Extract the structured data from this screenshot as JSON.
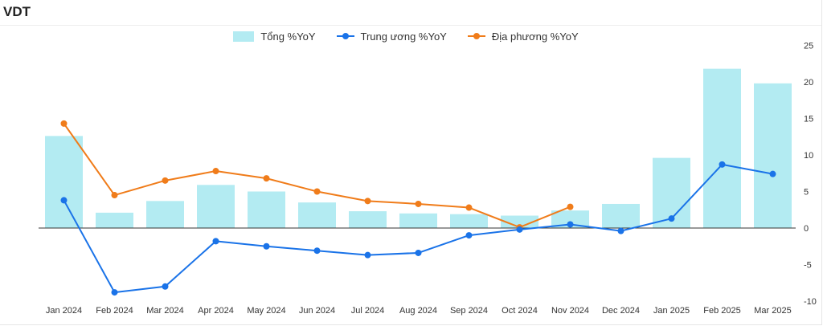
{
  "title": "VDT",
  "legend": {
    "bars_label": "Tổng %YoY",
    "line1_label": "Trung ương %YoY",
    "line2_label": "Địa phương %YoY"
  },
  "colors": {
    "bars": "#b3ebf2",
    "line1": "#1a73e8",
    "line2": "#f07c1a",
    "zero_line": "#333333"
  },
  "chart_data": {
    "type": "bar",
    "categories": [
      "Jan 2024",
      "Feb 2024",
      "Mar 2024",
      "Apr 2024",
      "May 2024",
      "Jun 2024",
      "Jul 2024",
      "Aug 2024",
      "Sep 2024",
      "Oct 2024",
      "Nov 2024",
      "Dec 2024",
      "Jan 2025",
      "Feb 2025",
      "Mar 2025"
    ],
    "series": [
      {
        "name": "Tổng %YoY",
        "type": "bar",
        "values": [
          12.6,
          2.1,
          3.7,
          5.9,
          5.0,
          3.5,
          2.3,
          2.0,
          1.9,
          1.7,
          2.4,
          3.3,
          9.6,
          21.8,
          19.8
        ]
      },
      {
        "name": "Trung ương %YoY",
        "type": "line",
        "values": [
          3.8,
          -8.8,
          -8.0,
          -1.8,
          -2.5,
          -3.1,
          -3.7,
          -3.4,
          -1.0,
          -0.2,
          0.5,
          -0.4,
          1.3,
          8.7,
          7.4
        ]
      },
      {
        "name": "Địa phương %YoY",
        "type": "line",
        "values": [
          14.3,
          4.5,
          6.5,
          7.8,
          6.8,
          5.0,
          3.7,
          3.3,
          2.8,
          0.1,
          2.9,
          null,
          null,
          null,
          null
        ]
      }
    ],
    "y_ticks": [
      25,
      20,
      15,
      10,
      5,
      0,
      -5,
      -10
    ],
    "ylim": [
      -10,
      25
    ],
    "y_axis_side": "right",
    "grid": false,
    "legend_position": "top-center"
  }
}
